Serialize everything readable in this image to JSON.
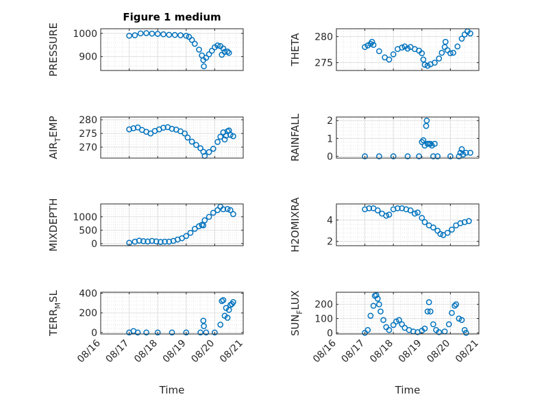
{
  "figure": {
    "title": "Figure 1 medium",
    "xlabel": "Time",
    "x_tick_labels": [
      "08/16",
      "08/17",
      "08/18",
      "08/19",
      "08/20",
      "08/21"
    ],
    "marker_color": "#0072BD"
  },
  "chart_data": [
    {
      "type": "scatter",
      "title": "Figure 1 medium",
      "ylabel": "PRESSURE",
      "xlim_days": [
        16,
        21
      ],
      "ylim": [
        840,
        1020
      ],
      "yticks": [
        900,
        1000
      ],
      "grid": true,
      "points": [
        [
          17.0,
          990
        ],
        [
          17.2,
          992
        ],
        [
          17.4,
          1000
        ],
        [
          17.6,
          1001
        ],
        [
          17.8,
          999
        ],
        [
          18.0,
          998
        ],
        [
          18.2,
          996
        ],
        [
          18.4,
          994
        ],
        [
          18.6,
          993
        ],
        [
          18.8,
          992
        ],
        [
          19.0,
          990
        ],
        [
          19.1,
          985
        ],
        [
          19.2,
          972
        ],
        [
          19.3,
          955
        ],
        [
          19.45,
          930
        ],
        [
          19.55,
          905
        ],
        [
          19.6,
          885
        ],
        [
          19.62,
          858
        ],
        [
          19.7,
          895
        ],
        [
          19.8,
          910
        ],
        [
          19.9,
          925
        ],
        [
          20.0,
          940
        ],
        [
          20.1,
          948
        ],
        [
          20.2,
          945
        ],
        [
          20.25,
          908
        ],
        [
          20.3,
          935
        ],
        [
          20.35,
          920
        ],
        [
          20.45,
          922
        ],
        [
          20.5,
          916
        ]
      ]
    },
    {
      "type": "scatter",
      "ylabel": "THETA",
      "xlim_days": [
        16,
        21
      ],
      "ylim": [
        273.5,
        281.5
      ],
      "yticks": [
        275,
        280
      ],
      "grid": true,
      "points": [
        [
          17.0,
          278.0
        ],
        [
          17.1,
          278.3
        ],
        [
          17.2,
          278.6
        ],
        [
          17.25,
          279.0
        ],
        [
          17.3,
          278.4
        ],
        [
          17.5,
          277.2
        ],
        [
          17.7,
          276.0
        ],
        [
          17.85,
          275.6
        ],
        [
          18.0,
          276.6
        ],
        [
          18.15,
          277.6
        ],
        [
          18.3,
          277.9
        ],
        [
          18.4,
          278.1
        ],
        [
          18.5,
          277.7
        ],
        [
          18.6,
          278.0
        ],
        [
          18.75,
          277.6
        ],
        [
          18.9,
          277.3
        ],
        [
          19.0,
          276.8
        ],
        [
          19.05,
          275.6
        ],
        [
          19.1,
          274.6
        ],
        [
          19.2,
          274.4
        ],
        [
          19.3,
          274.7
        ],
        [
          19.45,
          275.0
        ],
        [
          19.6,
          275.8
        ],
        [
          19.7,
          276.9
        ],
        [
          19.8,
          278.0
        ],
        [
          19.83,
          279.0
        ],
        [
          19.9,
          277.4
        ],
        [
          20.0,
          276.8
        ],
        [
          20.1,
          276.9
        ],
        [
          20.25,
          278.1
        ],
        [
          20.4,
          279.6
        ],
        [
          20.5,
          280.4
        ],
        [
          20.6,
          281.0
        ],
        [
          20.7,
          280.6
        ]
      ]
    },
    {
      "type": "scatter",
      "ylabel": "AIR_TEMP",
      "xlim_days": [
        16,
        21
      ],
      "ylim": [
        266,
        281
      ],
      "yticks": [
        270,
        275,
        280
      ],
      "grid": true,
      "points": [
        [
          17.0,
          276.5
        ],
        [
          17.15,
          276.9
        ],
        [
          17.3,
          277.2
        ],
        [
          17.45,
          276.3
        ],
        [
          17.6,
          275.6
        ],
        [
          17.75,
          275.0
        ],
        [
          17.9,
          275.9
        ],
        [
          18.05,
          276.5
        ],
        [
          18.2,
          277.1
        ],
        [
          18.35,
          277.3
        ],
        [
          18.5,
          276.7
        ],
        [
          18.65,
          276.4
        ],
        [
          18.8,
          275.8
        ],
        [
          18.95,
          275.0
        ],
        [
          19.05,
          273.5
        ],
        [
          19.2,
          272.0
        ],
        [
          19.35,
          270.8
        ],
        [
          19.5,
          269.6
        ],
        [
          19.6,
          268.3
        ],
        [
          19.65,
          266.8
        ],
        [
          19.8,
          268.2
        ],
        [
          19.95,
          269.4
        ],
        [
          20.1,
          271.9
        ],
        [
          20.2,
          273.8
        ],
        [
          20.3,
          275.4
        ],
        [
          20.35,
          272.8
        ],
        [
          20.4,
          274.2
        ],
        [
          20.45,
          275.8
        ],
        [
          20.5,
          276.1
        ],
        [
          20.55,
          274.5
        ],
        [
          20.65,
          274.0
        ]
      ]
    },
    {
      "type": "scatter",
      "ylabel": "RAINFALL",
      "xlim_days": [
        16,
        21
      ],
      "ylim": [
        -0.1,
        2.2
      ],
      "yticks": [
        0,
        1,
        2
      ],
      "grid": true,
      "points": [
        [
          17.0,
          0
        ],
        [
          17.5,
          0
        ],
        [
          18.0,
          0
        ],
        [
          18.5,
          0
        ],
        [
          18.9,
          0
        ],
        [
          19.0,
          0.8
        ],
        [
          19.05,
          0.9
        ],
        [
          19.1,
          0.6
        ],
        [
          19.15,
          1.7
        ],
        [
          19.17,
          2.0
        ],
        [
          19.2,
          0.7
        ],
        [
          19.25,
          0.7
        ],
        [
          19.3,
          0.7
        ],
        [
          19.35,
          0.6
        ],
        [
          19.4,
          0
        ],
        [
          19.45,
          0.7
        ],
        [
          19.55,
          0
        ],
        [
          20.0,
          0
        ],
        [
          20.3,
          0
        ],
        [
          20.35,
          0.2
        ],
        [
          20.4,
          0.4
        ],
        [
          20.45,
          0.1
        ],
        [
          20.55,
          0.2
        ],
        [
          20.7,
          0.2
        ]
      ]
    },
    {
      "type": "scatter",
      "ylabel": "MIXDEPTH",
      "xlim_days": [
        16,
        21
      ],
      "ylim": [
        -80,
        1480
      ],
      "yticks": [
        0,
        500,
        1000
      ],
      "grid": true,
      "points": [
        [
          17.0,
          30
        ],
        [
          17.2,
          70
        ],
        [
          17.35,
          110
        ],
        [
          17.5,
          90
        ],
        [
          17.65,
          75
        ],
        [
          17.8,
          100
        ],
        [
          17.95,
          80
        ],
        [
          18.1,
          60
        ],
        [
          18.25,
          70
        ],
        [
          18.4,
          70
        ],
        [
          18.55,
          100
        ],
        [
          18.7,
          150
        ],
        [
          18.85,
          200
        ],
        [
          19.0,
          280
        ],
        [
          19.15,
          400
        ],
        [
          19.3,
          550
        ],
        [
          19.45,
          650
        ],
        [
          19.55,
          700
        ],
        [
          19.6,
          680
        ],
        [
          19.65,
          870
        ],
        [
          19.8,
          1000
        ],
        [
          19.95,
          1150
        ],
        [
          20.1,
          1250
        ],
        [
          20.2,
          1380
        ],
        [
          20.3,
          1280
        ],
        [
          20.45,
          1290
        ],
        [
          20.55,
          1250
        ],
        [
          20.65,
          1100
        ]
      ]
    },
    {
      "type": "scatter",
      "ylabel": "H2OMIXRA",
      "xlim_days": [
        16,
        21
      ],
      "ylim": [
        1.6,
        5.5
      ],
      "yticks": [
        2,
        4
      ],
      "grid": true,
      "points": [
        [
          17.0,
          5.0
        ],
        [
          17.15,
          5.1
        ],
        [
          17.3,
          5.1
        ],
        [
          17.45,
          4.9
        ],
        [
          17.6,
          4.6
        ],
        [
          17.75,
          4.4
        ],
        [
          17.85,
          4.5
        ],
        [
          18.0,
          5.0
        ],
        [
          18.15,
          5.1
        ],
        [
          18.3,
          5.1
        ],
        [
          18.45,
          5.0
        ],
        [
          18.6,
          4.9
        ],
        [
          18.75,
          4.6
        ],
        [
          18.85,
          4.7
        ],
        [
          19.0,
          4.2
        ],
        [
          19.1,
          3.8
        ],
        [
          19.25,
          3.5
        ],
        [
          19.4,
          3.3
        ],
        [
          19.55,
          3.0
        ],
        [
          19.65,
          2.7
        ],
        [
          19.75,
          2.6
        ],
        [
          19.9,
          2.8
        ],
        [
          20.05,
          3.1
        ],
        [
          20.2,
          3.5
        ],
        [
          20.35,
          3.7
        ],
        [
          20.5,
          3.8
        ],
        [
          20.65,
          3.9
        ]
      ]
    },
    {
      "type": "scatter",
      "ylabel": "TERR_MSL",
      "xlim_days": [
        16,
        21
      ],
      "ylim": [
        -15,
        410
      ],
      "yticks": [
        0,
        200,
        400
      ],
      "grid": true,
      "points": [
        [
          17.0,
          0
        ],
        [
          17.15,
          15
        ],
        [
          17.3,
          0
        ],
        [
          17.6,
          0
        ],
        [
          18.0,
          0
        ],
        [
          18.5,
          0
        ],
        [
          19.0,
          0
        ],
        [
          19.5,
          0
        ],
        [
          19.6,
          120
        ],
        [
          19.62,
          65
        ],
        [
          19.7,
          0
        ],
        [
          20.0,
          0
        ],
        [
          20.2,
          80
        ],
        [
          20.25,
          320
        ],
        [
          20.3,
          330
        ],
        [
          20.35,
          170
        ],
        [
          20.4,
          250
        ],
        [
          20.45,
          150
        ],
        [
          20.5,
          230
        ],
        [
          20.55,
          280
        ],
        [
          20.6,
          290
        ],
        [
          20.65,
          310
        ]
      ]
    },
    {
      "type": "scatter",
      "ylabel": "SUN_FLUX",
      "xlim_days": [
        16,
        21
      ],
      "ylim": [
        -8,
        285
      ],
      "yticks": [
        0,
        100,
        200
      ],
      "grid": true,
      "points": [
        [
          17.0,
          0
        ],
        [
          17.1,
          20
        ],
        [
          17.2,
          120
        ],
        [
          17.3,
          190
        ],
        [
          17.35,
          260
        ],
        [
          17.4,
          265
        ],
        [
          17.45,
          240
        ],
        [
          17.5,
          200
        ],
        [
          17.55,
          150
        ],
        [
          17.65,
          90
        ],
        [
          17.75,
          40
        ],
        [
          17.85,
          20
        ],
        [
          18.0,
          55
        ],
        [
          18.1,
          80
        ],
        [
          18.2,
          90
        ],
        [
          18.3,
          60
        ],
        [
          18.4,
          35
        ],
        [
          18.55,
          20
        ],
        [
          18.7,
          10
        ],
        [
          18.85,
          5
        ],
        [
          19.0,
          15
        ],
        [
          19.1,
          30
        ],
        [
          19.2,
          150
        ],
        [
          19.25,
          215
        ],
        [
          19.3,
          150
        ],
        [
          19.4,
          60
        ],
        [
          19.5,
          20
        ],
        [
          19.6,
          5
        ],
        [
          19.8,
          10
        ],
        [
          19.95,
          60
        ],
        [
          20.05,
          140
        ],
        [
          20.15,
          190
        ],
        [
          20.2,
          200
        ],
        [
          20.3,
          100
        ],
        [
          20.4,
          90
        ],
        [
          20.5,
          20
        ],
        [
          20.55,
          0
        ]
      ]
    }
  ]
}
